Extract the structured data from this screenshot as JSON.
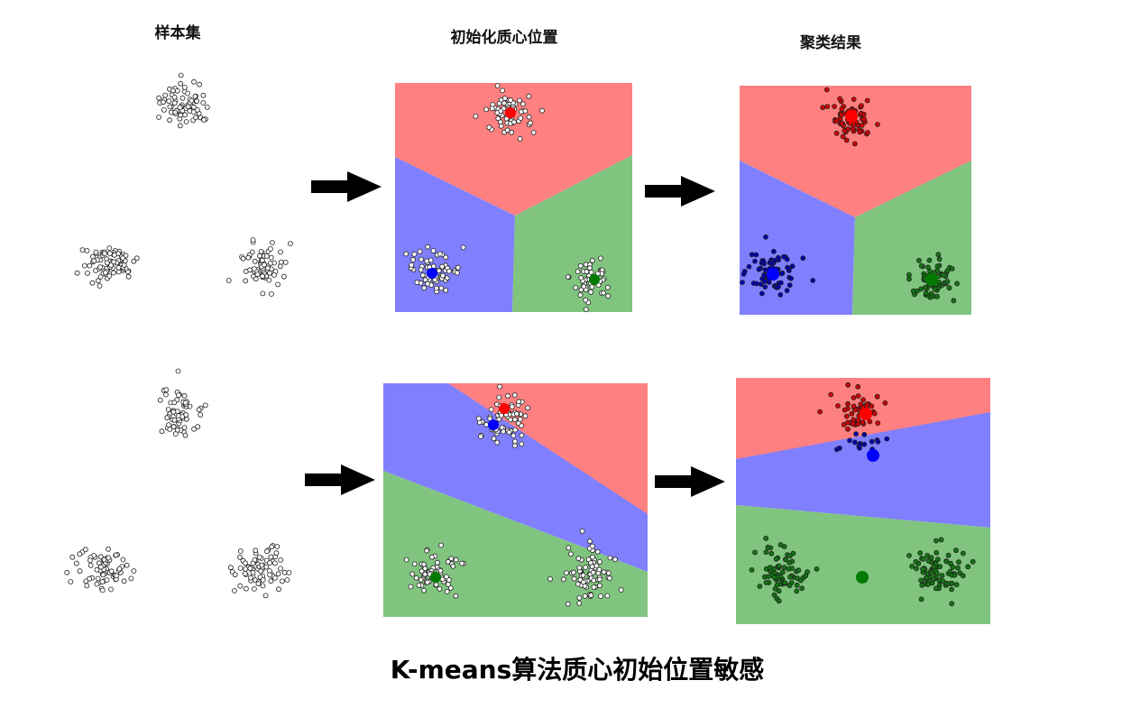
{
  "headers": {
    "samples": "样本集",
    "init": "初始化质心位置",
    "result": "聚类结果"
  },
  "title": "K-means算法质心初始位置敏感",
  "colors": {
    "red_region": "#ff8080",
    "blue_region": "#8080ff",
    "green_region": "#80c480",
    "red_centroid": "#ff0000",
    "blue_centroid": "#0000ff",
    "green_centroid": "#007a00",
    "red_point": "#d40000",
    "blue_point": "#0000b0",
    "green_point": "#117711",
    "empty_point": "#ffffff"
  }
}
